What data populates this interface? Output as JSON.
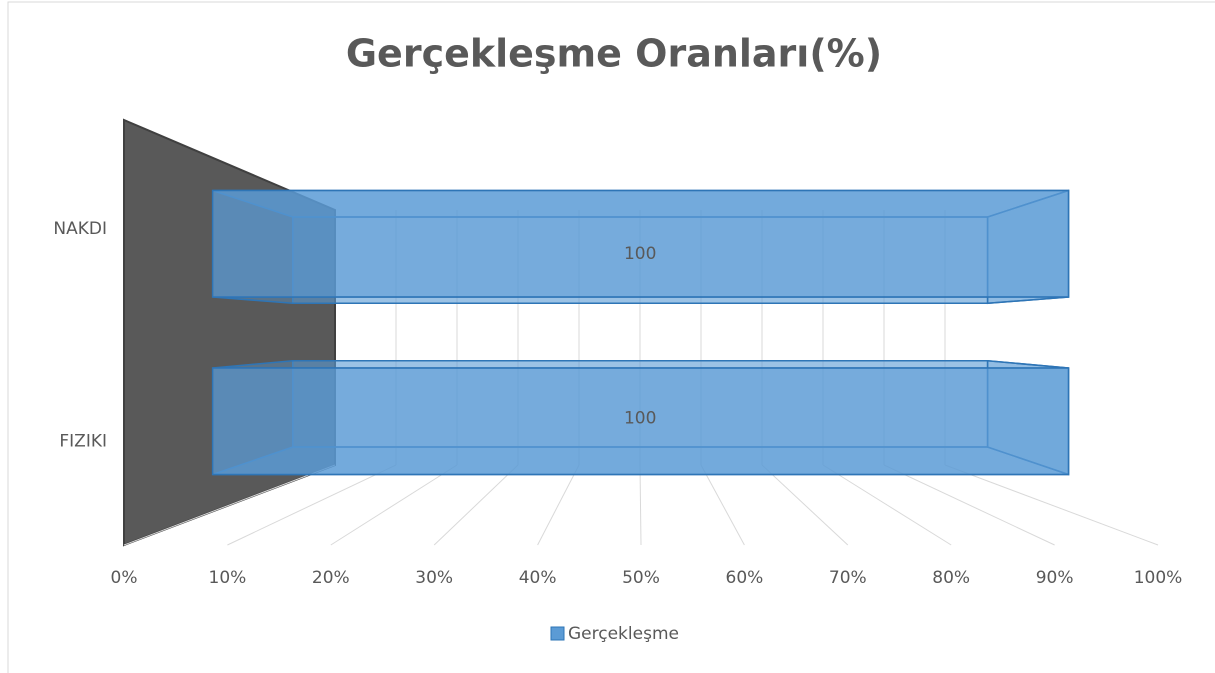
{
  "chart_data": {
    "type": "bar3d",
    "orientation": "horizontal",
    "title": "Gerçekleşme Oranları(%)",
    "categories": [
      "NAKDI",
      "FIZIKI"
    ],
    "series": [
      {
        "name": "Gerçekleşme",
        "color": "#5b9bd5",
        "values": [
          100,
          100
        ]
      }
    ],
    "xlim": [
      0,
      100
    ],
    "xticks": [
      {
        "value": 0,
        "label": "0%"
      },
      {
        "value": 10,
        "label": "10%"
      },
      {
        "value": 20,
        "label": "20%"
      },
      {
        "value": 30,
        "label": "30%"
      },
      {
        "value": 40,
        "label": "40%"
      },
      {
        "value": 50,
        "label": "50%"
      },
      {
        "value": 60,
        "label": "60%"
      },
      {
        "value": 70,
        "label": "70%"
      },
      {
        "value": 80,
        "label": "80%"
      },
      {
        "value": 90,
        "label": "90%"
      },
      {
        "value": 100,
        "label": "100%"
      }
    ],
    "grid": true,
    "legend": "bottom"
  }
}
